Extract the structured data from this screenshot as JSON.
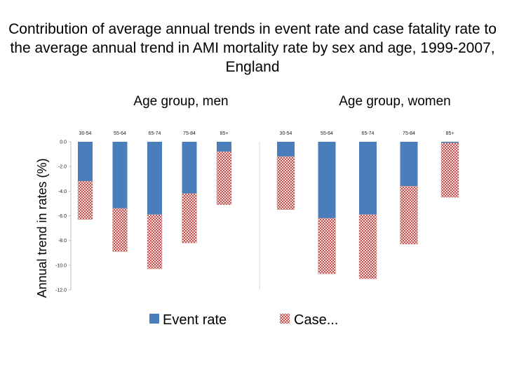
{
  "slide": {
    "title": "Contribution of average annual trends in event rate and case fatality rate to the average annual trend in AMI mortality rate by sex and age, 1999-2007, England"
  },
  "chart_data": {
    "type": "bar",
    "stacked": true,
    "ylabel": "Annual trend in rates (%)",
    "ylim": [
      -12.0,
      0.0
    ],
    "yticks": [
      "0.0",
      "-2.0",
      "-4.0",
      "-6.0",
      "-8.0",
      "-10.0",
      "-12.0"
    ],
    "grid": false,
    "legend_position": "bottom",
    "colors": {
      "event_rate": "#4a7ebb",
      "case_fatality": "#c0504d",
      "hatch_bg": "#f2dcdb"
    },
    "panels": [
      {
        "title": "Age group, men",
        "categories": [
          "30-54",
          "55-64",
          "65-74",
          "75-84",
          "85+"
        ],
        "series": [
          {
            "name": "Event rate",
            "values": [
              -3.2,
              -5.4,
              -5.9,
              -4.2,
              -0.8
            ]
          },
          {
            "name": "Case...",
            "values": [
              -3.1,
              -3.5,
              -4.4,
              -4.0,
              -4.3
            ]
          }
        ]
      },
      {
        "title": "Age group, women",
        "categories": [
          "30-54",
          "55-64",
          "65-74",
          "75-84",
          "85+"
        ],
        "series": [
          {
            "name": "Event rate",
            "values": [
              -1.2,
              -6.2,
              -5.9,
              -3.6,
              -0.1
            ]
          },
          {
            "name": "Case...",
            "values": [
              -4.3,
              -4.5,
              -5.2,
              -4.7,
              -4.4
            ]
          }
        ]
      }
    ],
    "legend": [
      "Event rate",
      "Case..."
    ]
  }
}
